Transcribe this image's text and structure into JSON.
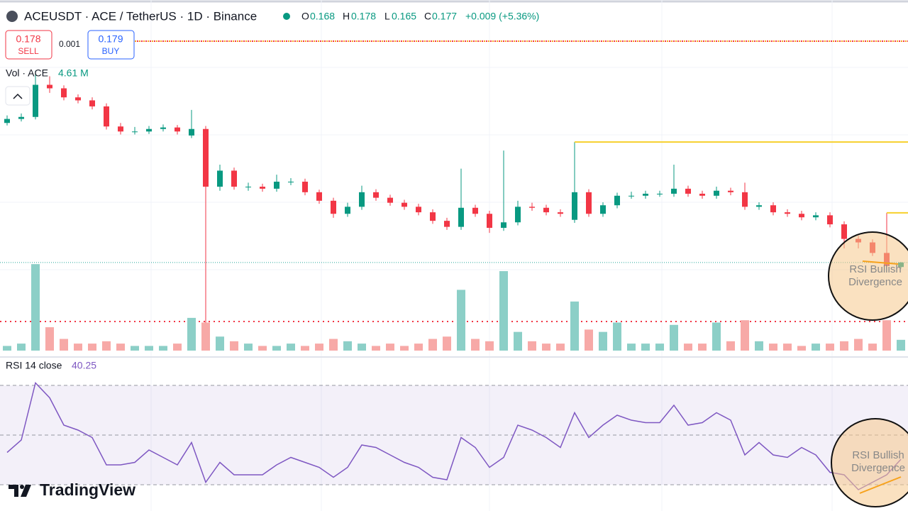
{
  "header": {
    "symbol": "ACEUSDT · ACE / TetherUS · 1D · Binance",
    "ohlc": [
      {
        "label": "O",
        "value": "0.168"
      },
      {
        "label": "H",
        "value": "0.178"
      },
      {
        "label": "L",
        "value": "0.165"
      },
      {
        "label": "C",
        "value": "0.177"
      }
    ],
    "change": "+0.009 (+5.36%)"
  },
  "trade": {
    "sell_price": "0.178",
    "sell": "SELL",
    "spread": "0.001",
    "buy_price": "0.179",
    "buy": "BUY"
  },
  "chart_data": {
    "type": "candlestick",
    "open": [
      0.455,
      0.463,
      0.467,
      0.531,
      0.524,
      0.506,
      0.5,
      0.488,
      0.448,
      0.438,
      0.438,
      0.443,
      0.446,
      0.43,
      0.443,
      0.328,
      0.36,
      0.328,
      0.328,
      0.324,
      0.338,
      0.338,
      0.317,
      0.3,
      0.274,
      0.288,
      0.317,
      0.306,
      0.296,
      0.288,
      0.277,
      0.26,
      0.248,
      0.286,
      0.274,
      0.246,
      0.257,
      0.288,
      0.286,
      0.277,
      0.262,
      0.317,
      0.274,
      0.291,
      0.31,
      0.31,
      0.314,
      0.314,
      0.324,
      0.314,
      0.31,
      0.32,
      0.317,
      0.288,
      0.291,
      0.277,
      0.274,
      0.267,
      0.271,
      0.253,
      0.224,
      0.217,
      0.196,
      0.168
    ],
    "high": [
      0.47,
      0.474,
      0.559,
      0.548,
      0.53,
      0.512,
      0.506,
      0.494,
      0.455,
      0.447,
      0.449,
      0.452,
      0.451,
      0.481,
      0.449,
      0.372,
      0.366,
      0.336,
      0.334,
      0.352,
      0.345,
      0.344,
      0.322,
      0.306,
      0.296,
      0.33,
      0.323,
      0.312,
      0.302,
      0.294,
      0.283,
      0.266,
      0.364,
      0.292,
      0.28,
      0.4,
      0.3,
      0.296,
      0.292,
      0.283,
      0.417,
      0.323,
      0.297,
      0.316,
      0.318,
      0.32,
      0.32,
      0.372,
      0.33,
      0.32,
      0.328,
      0.326,
      0.336,
      0.297,
      0.297,
      0.283,
      0.28,
      0.277,
      0.277,
      0.259,
      0.23,
      0.223,
      0.276,
      0.178
    ],
    "low": [
      0.45,
      0.458,
      0.462,
      0.515,
      0.5,
      0.494,
      0.482,
      0.442,
      0.432,
      0.432,
      0.433,
      0.438,
      0.432,
      0.425,
      0.057,
      0.32,
      0.322,
      0.32,
      0.318,
      0.318,
      0.331,
      0.311,
      0.294,
      0.266,
      0.268,
      0.282,
      0.3,
      0.29,
      0.282,
      0.271,
      0.254,
      0.242,
      0.242,
      0.268,
      0.236,
      0.24,
      0.251,
      0.28,
      0.271,
      0.268,
      0.256,
      0.268,
      0.268,
      0.285,
      0.304,
      0.304,
      0.308,
      0.308,
      0.308,
      0.304,
      0.304,
      0.311,
      0.282,
      0.282,
      0.271,
      0.268,
      0.261,
      0.261,
      0.247,
      0.205,
      0.205,
      0.19,
      0.164,
      0.165
    ],
    "close": [
      0.463,
      0.467,
      0.531,
      0.524,
      0.506,
      0.5,
      0.488,
      0.448,
      0.438,
      0.438,
      0.443,
      0.446,
      0.438,
      0.443,
      0.328,
      0.36,
      0.328,
      0.328,
      0.324,
      0.338,
      0.338,
      0.317,
      0.3,
      0.274,
      0.288,
      0.317,
      0.306,
      0.296,
      0.288,
      0.277,
      0.26,
      0.248,
      0.286,
      0.274,
      0.246,
      0.257,
      0.288,
      0.286,
      0.277,
      0.274,
      0.317,
      0.274,
      0.291,
      0.31,
      0.31,
      0.314,
      0.314,
      0.324,
      0.314,
      0.31,
      0.32,
      0.317,
      0.288,
      0.291,
      0.277,
      0.274,
      0.267,
      0.271,
      0.253,
      0.224,
      0.217,
      0.196,
      0.17,
      0.177
    ],
    "ylim": [
      0,
      0.7
    ],
    "up_color": "#089981",
    "down_color": "#f23645",
    "volume": {
      "title": "Vol · ACE",
      "value_label": "4.61 M",
      "values": [
        2,
        3,
        37,
        10,
        5,
        3,
        3,
        4,
        3,
        2,
        2,
        2,
        3,
        14,
        12,
        6,
        4,
        3,
        2,
        2,
        3,
        2,
        3,
        5,
        4,
        3,
        2,
        3,
        2,
        3,
        5,
        6,
        26,
        5,
        4,
        34,
        8,
        4,
        3,
        3,
        21,
        9,
        8,
        12,
        3,
        3,
        3,
        11,
        3,
        3,
        12,
        4,
        13,
        4,
        3,
        3,
        2,
        3,
        3,
        4,
        5,
        3,
        13,
        4.61
      ],
      "ylim": [
        0,
        150
      ],
      "up_color": "#8ccfc7",
      "down_color": "#f7a9a7"
    },
    "rsi": {
      "title": "RSI 14 close",
      "value_label": "40.25",
      "values": [
        43,
        48,
        71,
        65,
        54,
        52,
        49,
        38,
        38,
        39,
        44,
        41,
        38,
        47,
        31,
        39,
        34,
        34,
        34,
        38,
        41,
        39,
        37,
        33,
        37,
        46,
        45,
        42,
        39,
        37,
        33,
        32,
        49,
        45,
        37,
        41,
        54,
        52,
        49,
        45,
        59,
        49,
        54,
        58,
        56,
        55,
        55,
        62,
        54,
        55,
        59,
        56,
        42,
        47,
        42,
        41,
        45,
        42,
        35,
        34,
        28,
        31,
        34,
        40.25
      ],
      "ylim": [
        20,
        80
      ],
      "levels": [
        30,
        50,
        70
      ],
      "color": "#7e57c2"
    },
    "annotations": [
      {
        "lines": [
          "RSI Bullish",
          "Divergence"
        ]
      },
      {
        "lines": [
          "RSI Bullish",
          "Divergence"
        ]
      }
    ]
  },
  "logo": "TradingView"
}
